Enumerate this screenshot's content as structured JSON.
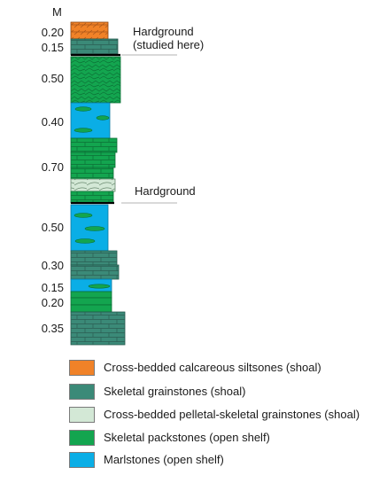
{
  "unit_label": "M",
  "thickness_labels": [
    "0.20",
    "0.15",
    "0.50",
    "0.40",
    "0.70",
    "0.50",
    "0.30",
    "0.15",
    "0.20",
    "0.35"
  ],
  "hardgrounds": [
    {
      "line1": "Hardground",
      "line2": "(studied here)"
    },
    {
      "line1": "Hardground",
      "line2": ""
    }
  ],
  "legend": [
    {
      "label": "Cross-bedded calcareous siltsones (shoal)",
      "color": "#f08228"
    },
    {
      "label": "Skeletal grainstones (shoal)",
      "color": "#3b8a78"
    },
    {
      "label": "Cross-bedded pelletal-skeletal grainstones (shoal)",
      "color": "#d3e8d6"
    },
    {
      "label": "Skeletal packstones (open shelf)",
      "color": "#13a54f"
    },
    {
      "label": "Marlstones (open shelf)",
      "color": "#0aaee6"
    }
  ],
  "colors": {
    "siltstone": "#f08228",
    "grainstone": "#3b8a78",
    "pelletal": "#d3e8d6",
    "packstone": "#13a54f",
    "marlstone": "#0aaee6"
  }
}
